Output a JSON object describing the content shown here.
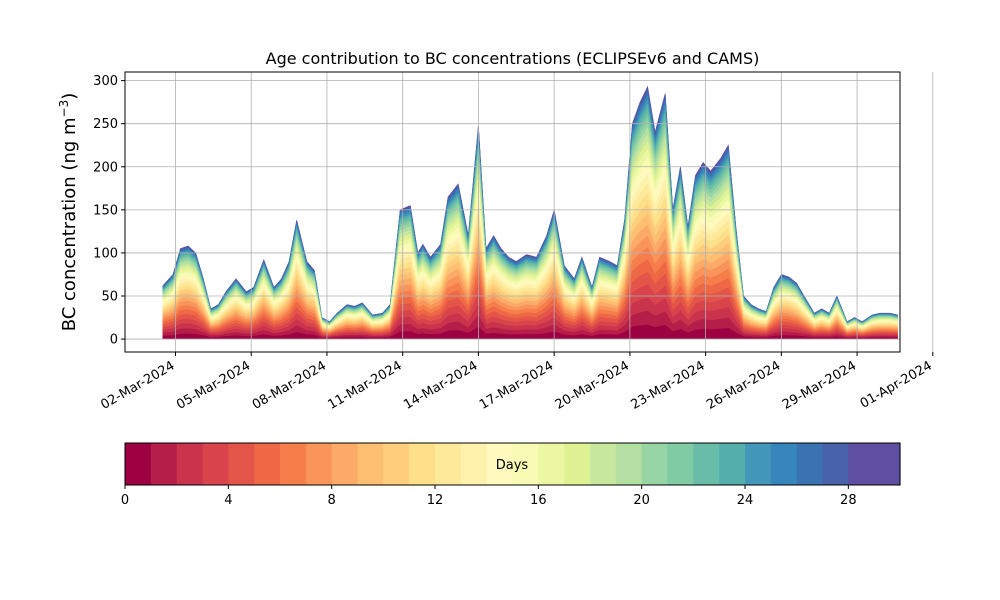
{
  "chart_data": {
    "type": "area",
    "title": "Age contribution to BC concentrations (ECLIPSEv6 and CAMS)",
    "ylabel_main": "BC concentration (ng m",
    "ylabel_sup": "−3",
    "ylabel_close": ")",
    "xlabel": "",
    "ylim": [
      -15,
      310
    ],
    "yticks": [
      0,
      50,
      100,
      150,
      200,
      250,
      300
    ],
    "grid": true,
    "xticks": [
      "02-Mar-2024",
      "05-Mar-2024",
      "08-Mar-2024",
      "11-Mar-2024",
      "14-Mar-2024",
      "17-Mar-2024",
      "20-Mar-2024",
      "23-Mar-2024",
      "26-Mar-2024",
      "29-Mar-2024",
      "01-Apr-2024"
    ],
    "x_unit": "date (March 2024, day of month)",
    "x_range": [
      1.0,
      31.7
    ],
    "x_tick_days": [
      3,
      6,
      9,
      12,
      15,
      18,
      21,
      24,
      27,
      30,
      33
    ],
    "total_series": {
      "x": [
        2.5,
        2.9,
        3.2,
        3.5,
        3.8,
        4.1,
        4.4,
        4.7,
        5.0,
        5.4,
        5.8,
        6.1,
        6.5,
        6.9,
        7.2,
        7.5,
        7.8,
        8.2,
        8.5,
        8.8,
        9.1,
        9.4,
        9.8,
        10.1,
        10.4,
        10.8,
        11.2,
        11.5,
        11.9,
        12.3,
        12.6,
        12.8,
        13.1,
        13.5,
        13.8,
        14.2,
        14.6,
        15.0,
        15.3,
        15.6,
        15.9,
        16.2,
        16.5,
        16.9,
        17.3,
        17.7,
        18.0,
        18.4,
        18.8,
        19.1,
        19.5,
        19.8,
        20.2,
        20.5,
        20.8,
        21.1,
        21.4,
        21.7,
        22.0,
        22.4,
        22.7,
        23.0,
        23.3,
        23.6,
        23.9,
        24.2,
        24.6,
        24.9,
        25.2,
        25.5,
        25.8,
        26.1,
        26.4,
        26.7,
        27.0,
        27.3,
        27.6,
        28.0,
        28.3,
        28.6,
        28.9,
        29.2,
        29.6,
        29.9,
        30.2,
        30.6,
        30.9,
        31.3,
        31.6
      ],
      "y": [
        62,
        75,
        105,
        108,
        100,
        70,
        35,
        40,
        55,
        70,
        55,
        60,
        92,
        60,
        70,
        90,
        138,
        90,
        80,
        25,
        20,
        30,
        40,
        38,
        42,
        28,
        30,
        40,
        150,
        155,
        100,
        110,
        95,
        110,
        165,
        180,
        120,
        248,
        105,
        120,
        105,
        95,
        90,
        98,
        95,
        120,
        150,
        85,
        70,
        95,
        60,
        95,
        90,
        85,
        140,
        250,
        275,
        293,
        240,
        285,
        150,
        200,
        130,
        190,
        205,
        195,
        210,
        225,
        130,
        50,
        40,
        35,
        32,
        60,
        75,
        72,
        65,
        45,
        30,
        35,
        30,
        50,
        20,
        25,
        20,
        28,
        30,
        30,
        28
      ]
    },
    "colorbar": {
      "label": "Days",
      "ticks": [
        0,
        4,
        8,
        12,
        16,
        20,
        24,
        28
      ],
      "range": [
        0,
        30
      ],
      "colors": [
        "#9e0142",
        "#b41e48",
        "#c9334c",
        "#d8434c",
        "#e45549",
        "#ee6846",
        "#f67e4b",
        "#f9945a",
        "#fcaa67",
        "#fdbf71",
        "#fece7c",
        "#fee08b",
        "#fee99b",
        "#fff2ad",
        "#fff9be",
        "#f8fbb4",
        "#ecf7a3",
        "#dff293",
        "#c7e89e",
        "#b3e0a2",
        "#98d5a4",
        "#7ecba4",
        "#69bda8",
        "#54aeac",
        "#4397b8",
        "#3686bb",
        "#3b73b2",
        "#4862ac",
        "#5e4fa2",
        "#5e4fa2"
      ]
    }
  }
}
